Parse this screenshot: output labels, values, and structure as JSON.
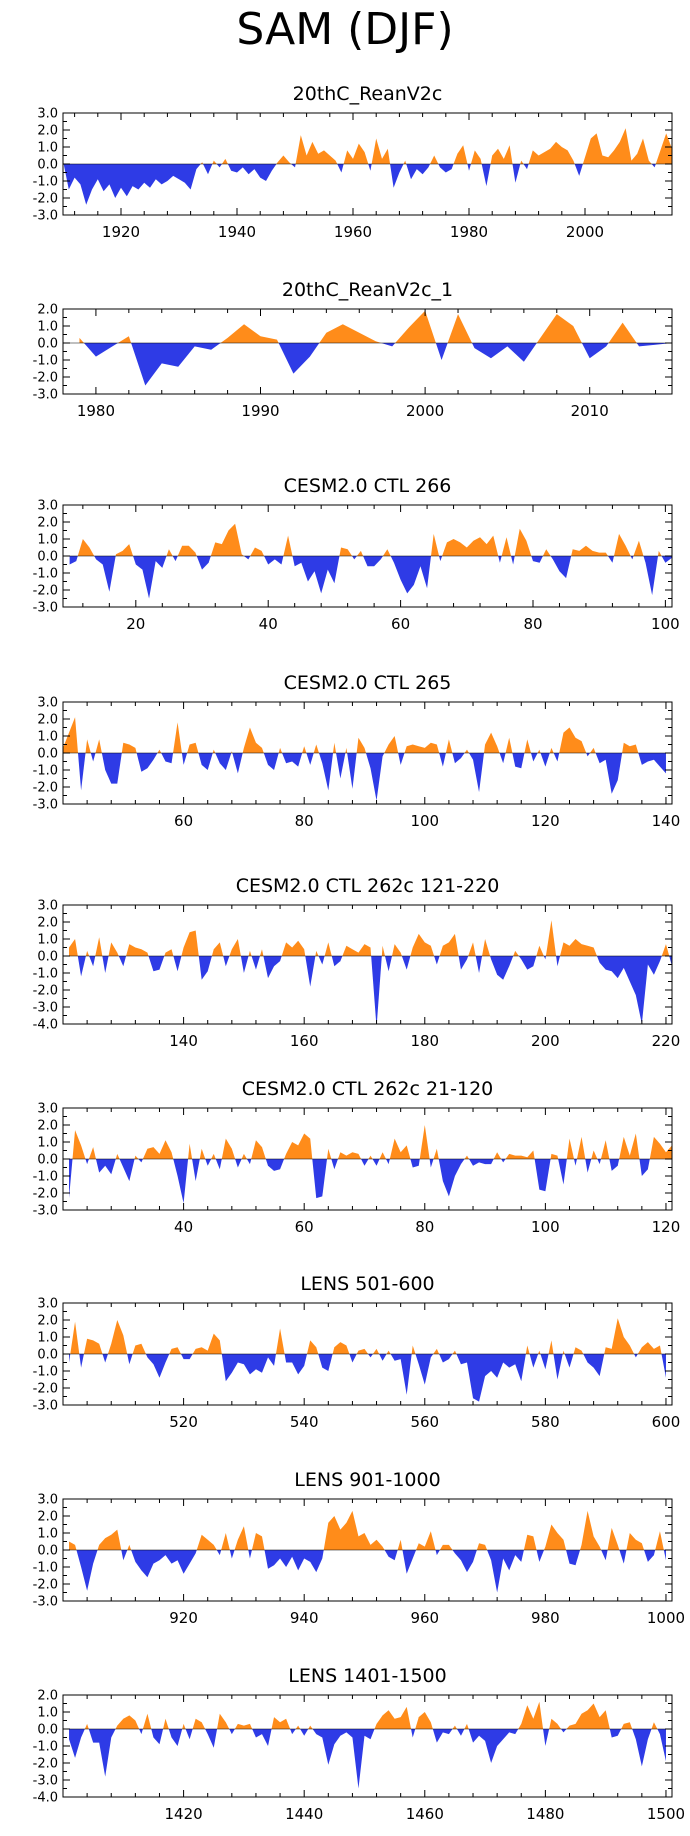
{
  "main_title": "SAM (DJF)",
  "colors": {
    "positive": "#FF8C1A",
    "negative": "#2E3BE6",
    "axis": "#000000"
  },
  "chart_data": [
    {
      "type": "area",
      "title": "20thC_ReanV2c",
      "xlim": [
        1910,
        2015
      ],
      "ylim": [
        -3,
        3
      ],
      "yticks": [
        3,
        2,
        1,
        0,
        -1,
        -2,
        -3
      ],
      "ytick_labels": [
        "3.0",
        "2.0",
        "1.0",
        "0.0",
        "-1.0",
        "-2.0",
        "-3.0"
      ],
      "xticks": [
        1920,
        1940,
        1960,
        1980,
        2000
      ],
      "xtick_labels": [
        "1920",
        "1940",
        "1960",
        "1980",
        "2000"
      ],
      "x_start": 1910,
      "values": [
        0.2,
        -1.5,
        -0.8,
        -1.2,
        -2.4,
        -1.5,
        -0.9,
        -1.6,
        -1.2,
        -2.0,
        -1.4,
        -1.9,
        -1.3,
        -1.5,
        -1.1,
        -1.4,
        -0.9,
        -1.2,
        -1.0,
        -0.7,
        -0.9,
        -1.1,
        -1.5,
        -0.3,
        0.1,
        -0.6,
        0.2,
        -0.2,
        0.3,
        -0.4,
        -0.5,
        -0.2,
        -0.6,
        -0.3,
        -0.8,
        -1.0,
        -0.4,
        0.1,
        0.5,
        0.1,
        -0.2,
        1.7,
        0.5,
        1.3,
        0.6,
        0.8,
        0.5,
        0.2,
        -0.5,
        0.8,
        0.3,
        1.2,
        0.7,
        -0.4,
        1.5,
        0.3,
        0.9,
        -1.4,
        -0.5,
        0.2,
        -0.9,
        -0.3,
        -0.6,
        -0.2,
        0.5,
        -0.2,
        -0.5,
        -0.3,
        0.6,
        1.1,
        -0.4,
        0.8,
        0.3,
        -1.3,
        0.5,
        0.9,
        0.3,
        1.1,
        -1.1,
        0.2,
        -0.3,
        0.8,
        0.5,
        0.7,
        0.9,
        1.3,
        1.0,
        0.8,
        0.2,
        -0.7,
        0.4,
        1.5,
        1.8,
        0.5,
        0.4,
        0.8,
        1.3,
        2.1,
        0.2,
        0.6,
        1.5,
        0.2,
        -0.2,
        0.8,
        1.8,
        0.9,
        0.9
      ]
    },
    {
      "type": "area",
      "title": "20thC_ReanV2c_1",
      "xlim": [
        1978,
        2015
      ],
      "ylim": [
        -3,
        2
      ],
      "yticks": [
        2,
        1,
        0,
        -1,
        -2,
        -3
      ],
      "ytick_labels": [
        "2.0",
        "1.0",
        "0.0",
        "-1.0",
        "-2.0",
        "-3.0"
      ],
      "xticks": [
        1980,
        1990,
        2000,
        2010
      ],
      "xtick_labels": [
        "1980",
        "1990",
        "2000",
        "2010"
      ],
      "x_start": 1979,
      "values": [
        0.3,
        -0.8,
        -0.2,
        0.4,
        -2.5,
        -1.2,
        -1.4,
        -0.2,
        -0.4,
        0.3,
        1.1,
        0.4,
        0.2,
        -1.8,
        -0.8,
        0.6,
        1.1,
        0.6,
        0.1,
        -0.2,
        0.9,
        1.9,
        -1.0,
        1.7,
        -0.3,
        -0.9,
        -0.2,
        -1.1,
        0.3,
        1.7,
        1.0,
        -0.9,
        -0.2,
        1.2,
        -0.2,
        -0.1,
        0.0
      ]
    },
    {
      "type": "area",
      "title": "CESM2.0 CTL 266",
      "xlim": [
        9,
        101
      ],
      "ylim": [
        -3,
        3
      ],
      "yticks": [
        3,
        2,
        1,
        0,
        -1,
        -2,
        -3
      ],
      "ytick_labels": [
        "3.0",
        "2.0",
        "1.0",
        "0.0",
        "-1.0",
        "-2.0",
        "-3.0"
      ],
      "xticks": [
        20,
        40,
        60,
        80,
        100
      ],
      "xtick_labels": [
        "20",
        "40",
        "60",
        "80",
        "100"
      ],
      "x_start": 10,
      "values": [
        -0.5,
        -0.3,
        1.0,
        0.5,
        -0.2,
        -0.5,
        -2.1,
        0.1,
        0.3,
        0.7,
        -0.5,
        -0.8,
        -2.5,
        -0.3,
        -0.7,
        0.4,
        -0.3,
        0.6,
        0.6,
        0.2,
        -0.8,
        -0.4,
        0.8,
        0.7,
        1.5,
        1.9,
        0.1,
        -0.2,
        0.5,
        0.3,
        -0.5,
        -0.2,
        -0.5,
        1.2,
        -0.6,
        -0.4,
        -1.5,
        -0.9,
        -2.2,
        -0.8,
        -1.6,
        0.5,
        0.4,
        -0.2,
        0.3,
        -0.6,
        -0.6,
        -0.2,
        0.4,
        -0.4,
        -1.4,
        -2.2,
        -1.7,
        -0.6,
        -1.9,
        1.3,
        -0.3,
        0.8,
        1.0,
        0.8,
        0.5,
        0.9,
        1.1,
        0.7,
        1.2,
        -0.4,
        1.1,
        -0.5,
        1.6,
        0.9,
        -0.3,
        -0.4,
        0.4,
        -0.2,
        -0.9,
        -1.3,
        0.4,
        0.3,
        0.6,
        0.3,
        0.2,
        0.2,
        -0.4,
        1.3,
        0.6,
        -0.2,
        0.9,
        -0.4,
        -2.3,
        0.3,
        -0.4,
        -0.1,
        1.1,
        -0.9,
        0.3,
        0.3,
        -0.5,
        -1.5,
        0.2
      ]
    },
    {
      "type": "area",
      "title": "CESM2.0 CTL 265",
      "xlim": [
        40,
        141
      ],
      "ylim": [
        -3,
        3
      ],
      "yticks": [
        3,
        2,
        1,
        0,
        -1,
        -2,
        -3
      ],
      "ytick_labels": [
        "3.0",
        "2.0",
        "1.0",
        "0.0",
        "-1.0",
        "-2.0",
        "-3.0"
      ],
      "xticks": [
        60,
        80,
        100,
        120,
        140
      ],
      "xtick_labels": [
        "60",
        "80",
        "100",
        "120",
        "140"
      ],
      "x_start": 40,
      "values": [
        0.3,
        1.2,
        2.1,
        -2.2,
        0.8,
        -0.5,
        0.8,
        -1.0,
        -1.8,
        -1.8,
        0.6,
        0.5,
        0.3,
        -1.1,
        -0.9,
        -0.4,
        0.2,
        -0.5,
        -0.6,
        1.8,
        -0.7,
        0.5,
        0.6,
        -0.7,
        -1.0,
        0.2,
        -0.6,
        -1.0,
        0.1,
        -1.2,
        0.3,
        1.5,
        0.6,
        0.3,
        -0.7,
        -1.0,
        0.3,
        -0.6,
        -0.5,
        -0.8,
        0.4,
        -0.7,
        0.5,
        -0.6,
        -2.2,
        0.6,
        -1.5,
        0.3,
        -2.1,
        0.9,
        0.3,
        -0.9,
        -2.8,
        -0.2,
        0.5,
        1.0,
        -0.7,
        0.4,
        0.5,
        0.4,
        0.3,
        0.6,
        0.5,
        -0.8,
        0.8,
        -0.6,
        -0.3,
        0.2,
        -0.4,
        -2.3,
        0.5,
        1.2,
        0.4,
        -0.6,
        0.9,
        -0.8,
        -0.9,
        0.8,
        -0.5,
        0.2,
        -0.8,
        0.3,
        -0.5,
        1.2,
        1.5,
        0.9,
        0.7,
        -0.2,
        0.3,
        -0.6,
        -0.4,
        -2.4,
        -1.6,
        0.6,
        0.4,
        0.5,
        -0.7,
        -0.5,
        -0.4,
        -0.8,
        -1.2
      ]
    },
    {
      "type": "area",
      "title": "CESM2.0 CTL 262c 121-220",
      "xlim": [
        120,
        221
      ],
      "ylim": [
        -4,
        3
      ],
      "yticks": [
        3,
        2,
        1,
        0,
        -1,
        -2,
        -3,
        -4
      ],
      "ytick_labels": [
        "3.0",
        "2.0",
        "1.0",
        "0.0",
        "-1.0",
        "-2.0",
        "-3.0",
        "-4.0"
      ],
      "xticks": [
        140,
        160,
        180,
        200,
        220
      ],
      "xtick_labels": [
        "140",
        "160",
        "180",
        "200",
        "220"
      ],
      "x_start": 121,
      "values": [
        0.5,
        1.0,
        -1.2,
        0.3,
        -0.6,
        1.1,
        -1.0,
        0.8,
        0.2,
        -0.6,
        0.7,
        0.5,
        0.4,
        0.2,
        -0.9,
        -0.8,
        0.2,
        0.4,
        -0.9,
        0.5,
        1.4,
        1.5,
        -1.4,
        -0.9,
        0.4,
        0.8,
        -0.6,
        0.4,
        1.0,
        -1.0,
        0.3,
        -0.8,
        0.4,
        -1.3,
        -0.6,
        -0.3,
        0.8,
        0.5,
        0.9,
        0.4,
        -1.8,
        0.3,
        -0.5,
        0.8,
        -0.6,
        -0.3,
        0.6,
        0.4,
        0.2,
        0.7,
        0.5,
        -4.2,
        0.6,
        -0.9,
        0.7,
        0.2,
        -0.8,
        0.5,
        1.3,
        0.8,
        0.6,
        -0.5,
        0.6,
        0.8,
        1.3,
        -0.8,
        -0.2,
        0.8,
        -1.0,
        1.0,
        -0.2,
        -1.1,
        -1.4,
        -0.6,
        0.3,
        -0.2,
        -0.8,
        -0.6,
        0.6,
        -0.2,
        2.1,
        -0.6,
        0.8,
        0.6,
        1.0,
        0.7,
        0.6,
        0.5,
        -0.4,
        -0.8,
        -0.9,
        -1.3,
        -0.7,
        -1.5,
        -2.3,
        -4.0,
        -0.5,
        -1.1,
        -0.3,
        0.7,
        -0.6
      ]
    },
    {
      "type": "area",
      "title": "CESM2.0 CTL 262c 21-120",
      "xlim": [
        20,
        121
      ],
      "ylim": [
        -3,
        3
      ],
      "yticks": [
        3,
        2,
        1,
        0,
        -1,
        -2,
        -3
      ],
      "ytick_labels": [
        "3.0",
        "2.0",
        "1.0",
        "0.0",
        "-1.0",
        "-2.0",
        "-3.0"
      ],
      "xticks": [
        40,
        60,
        80,
        100,
        120
      ],
      "xtick_labels": [
        "40",
        "60",
        "80",
        "100",
        "120"
      ],
      "x_start": 21,
      "values": [
        -2.3,
        1.7,
        0.8,
        -0.3,
        0.7,
        -0.8,
        -0.4,
        -0.9,
        0.3,
        -0.5,
        -1.3,
        0.2,
        -0.2,
        0.6,
        0.7,
        0.3,
        1.1,
        0.4,
        -1.0,
        -2.6,
        0.9,
        -1.3,
        0.6,
        -0.4,
        0.3,
        -0.6,
        1.2,
        0.6,
        -0.5,
        0.3,
        -0.3,
        1.1,
        0.7,
        -0.4,
        -0.7,
        -0.6,
        0.3,
        1.0,
        0.8,
        1.5,
        1.2,
        -2.3,
        -2.2,
        0.6,
        -0.6,
        0.4,
        0.2,
        0.4,
        0.3,
        -0.4,
        0.2,
        -0.4,
        0.4,
        -0.3,
        1.2,
        0.4,
        0.8,
        -0.5,
        -0.4,
        2.0,
        -0.5,
        0.6,
        -1.3,
        -2.2,
        -1.0,
        -0.3,
        0.2,
        -0.4,
        -0.2,
        -0.3,
        -0.3,
        0.4,
        -0.2,
        0.3,
        0.2,
        0.2,
        0.1,
        0.5,
        -1.8,
        -1.9,
        0.3,
        0.2,
        -1.5,
        1.2,
        -0.4,
        1.3,
        -0.8,
        0.5,
        -0.3,
        1.1,
        -0.7,
        -0.4,
        1.3,
        0.2,
        1.5,
        -1.0,
        -0.6,
        1.3,
        0.9,
        0.4,
        0.8
      ]
    },
    {
      "type": "area",
      "title": "LENS 501-600",
      "xlim": [
        500,
        601
      ],
      "ylim": [
        -3,
        3
      ],
      "yticks": [
        3,
        2,
        1,
        0,
        -1,
        -2,
        -3
      ],
      "ytick_labels": [
        "3.0",
        "2.0",
        "1.0",
        "0.0",
        "-1.0",
        "-2.0",
        "-3.0"
      ],
      "xticks": [
        520,
        540,
        560,
        580,
        600
      ],
      "xtick_labels": [
        "520",
        "540",
        "560",
        "580",
        "600"
      ],
      "x_start": 501,
      "values": [
        -0.5,
        1.9,
        -0.8,
        0.9,
        0.8,
        0.6,
        -0.5,
        0.6,
        2.0,
        1.1,
        -0.6,
        0.5,
        0.6,
        -0.2,
        -0.6,
        -1.4,
        -0.5,
        0.3,
        0.4,
        -0.3,
        -0.3,
        0.3,
        0.4,
        0.2,
        1.2,
        0.8,
        -1.6,
        -1.1,
        -0.5,
        -0.6,
        -1.2,
        -0.9,
        -1.1,
        -0.2,
        -0.7,
        1.5,
        -0.5,
        -0.5,
        -1.2,
        -0.7,
        0.8,
        0.4,
        -0.8,
        -1.0,
        0.4,
        0.7,
        0.5,
        -0.5,
        0.2,
        0.3,
        -0.2,
        0.3,
        -0.4,
        0.2,
        -0.4,
        -0.3,
        -2.4,
        0.5,
        -0.6,
        -1.8,
        -0.2,
        0.3,
        -0.5,
        -0.3,
        0.2,
        -0.6,
        -0.5,
        -2.6,
        -2.8,
        -1.3,
        -1.0,
        -1.4,
        -0.5,
        -0.8,
        -0.6,
        -1.6,
        0.5,
        -0.8,
        0.2,
        -0.9,
        0.8,
        -1.5,
        0.2,
        -0.8,
        0.4,
        0.2,
        -0.5,
        -0.8,
        -1.3,
        0.4,
        0.3,
        2.1,
        1.0,
        0.5,
        -0.2,
        0.4,
        0.7,
        0.3,
        0.5,
        -1.4
      ]
    },
    {
      "type": "area",
      "title": "LENS 901-1000",
      "xlim": [
        900,
        1001
      ],
      "ylim": [
        -3,
        3
      ],
      "yticks": [
        3,
        2,
        1,
        0,
        -1,
        -2,
        -3
      ],
      "ytick_labels": [
        "3.0",
        "2.0",
        "1.0",
        "0.0",
        "-1.0",
        "-2.0",
        "-3.0"
      ],
      "xticks": [
        920,
        940,
        960,
        980,
        1000
      ],
      "xtick_labels": [
        "920",
        "940",
        "960",
        "980",
        "1000"
      ],
      "x_start": 901,
      "values": [
        0.5,
        0.3,
        -1.0,
        -2.4,
        -0.8,
        0.3,
        0.7,
        0.9,
        1.2,
        -0.6,
        0.3,
        -0.7,
        -1.2,
        -1.6,
        -0.8,
        -0.6,
        -0.3,
        -0.8,
        -0.6,
        -1.4,
        -0.8,
        -0.2,
        0.9,
        0.6,
        0.3,
        -0.3,
        1.0,
        -0.5,
        0.6,
        1.4,
        -0.5,
        1.0,
        0.8,
        -1.1,
        -0.9,
        -0.5,
        -1.0,
        -0.4,
        -1.2,
        -0.5,
        -0.7,
        -1.3,
        -0.5,
        1.6,
        2.0,
        1.2,
        1.6,
        2.3,
        0.8,
        1.0,
        0.3,
        0.6,
        0.2,
        -0.4,
        -0.6,
        0.6,
        -1.4,
        -0.5,
        0.4,
        0.2,
        1.1,
        -0.3,
        0.3,
        0.3,
        -0.2,
        -0.6,
        -1.3,
        -0.7,
        0.4,
        0.3,
        -0.6,
        -2.5,
        -0.5,
        -1.2,
        -0.3,
        -0.7,
        0.9,
        0.8,
        -0.7,
        0.2,
        1.5,
        1.0,
        0.6,
        -0.8,
        -0.9,
        0.3,
        2.3,
        0.8,
        0.2,
        -0.6,
        1.3,
        0.3,
        -0.8,
        1.0,
        0.6,
        0.4,
        -0.7,
        -0.3,
        1.1,
        -0.6
      ]
    },
    {
      "type": "area",
      "title": "LENS 1401-1500",
      "xlim": [
        1400,
        1501
      ],
      "ylim": [
        -4,
        2
      ],
      "yticks": [
        2,
        1,
        0,
        -1,
        -2,
        -3,
        -4
      ],
      "ytick_labels": [
        "2.0",
        "1.0",
        "0.0",
        "-1.0",
        "-2.0",
        "-3.0",
        "-4.0"
      ],
      "xticks": [
        1420,
        1440,
        1460,
        1480,
        1500
      ],
      "xtick_labels": [
        "1420",
        "1440",
        "1460",
        "1480",
        "1500"
      ],
      "x_start": 1401,
      "values": [
        -0.6,
        -1.7,
        -0.5,
        0.3,
        -0.8,
        -0.8,
        -2.8,
        -0.5,
        0.2,
        0.6,
        0.8,
        0.5,
        -0.3,
        0.9,
        -0.5,
        -0.9,
        0.6,
        -0.5,
        -1.0,
        0.3,
        -0.6,
        0.6,
        0.4,
        -0.3,
        -1.1,
        0.9,
        0.4,
        -0.3,
        0.3,
        0.2,
        0.3,
        -0.5,
        -0.3,
        -1.0,
        0.7,
        0.4,
        0.6,
        -0.3,
        0.2,
        -0.4,
        0.2,
        -0.3,
        -0.5,
        -2.1,
        -0.9,
        -0.4,
        -0.2,
        -0.5,
        -3.5,
        -0.4,
        -0.6,
        0.3,
        0.8,
        1.1,
        0.6,
        0.7,
        1.3,
        -0.5,
        0.7,
        1.0,
        0.4,
        -0.8,
        -0.2,
        -0.3,
        0.2,
        -0.4,
        0.3,
        -0.8,
        -0.4,
        -0.7,
        -2.0,
        -1.0,
        -0.6,
        -0.2,
        -0.3,
        0.3,
        1.4,
        0.6,
        1.6,
        -1.0,
        0.6,
        0.3,
        -0.2,
        0.2,
        0.3,
        0.9,
        1.1,
        1.5,
        0.7,
        1.1,
        -0.5,
        -0.4,
        0.3,
        0.4,
        -0.6,
        -2.2,
        -0.6,
        0.4,
        -0.3,
        -1.9
      ]
    }
  ]
}
